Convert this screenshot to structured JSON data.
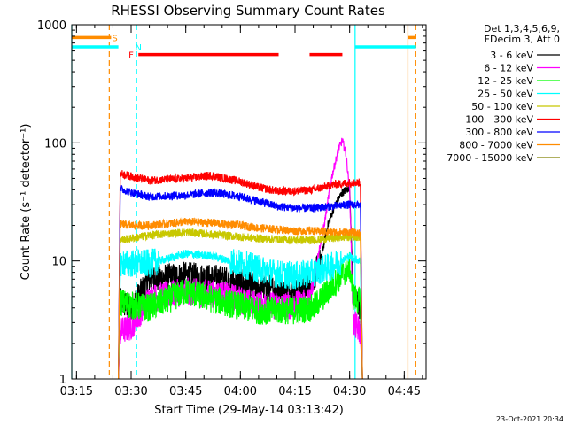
{
  "chart_data": {
    "type": "line",
    "title": "RHESSI Observing Summary Count Rates",
    "xlabel": "Start Time (29-May-14 03:13:42)",
    "ylabel": "Count Rate (s⁻¹ detector⁻¹)",
    "x_range": [
      "03:13:42",
      "04:51:00"
    ],
    "ylim": [
      1,
      1000
    ],
    "yscale": "log",
    "x_ticks": [
      "03:15",
      "03:30",
      "03:45",
      "04:00",
      "04:15",
      "04:30",
      "04:45"
    ],
    "y_ticks": [
      "1",
      "10",
      "100",
      "1000"
    ],
    "legend_header": [
      "Det 1,3,4,5,6,9,",
      "FDecim 3, Att 0"
    ],
    "legend_position": "right",
    "data_window": [
      "03:26:30",
      "04:33:30"
    ],
    "series": [
      {
        "name": "3 - 6 keV",
        "color": "#000000",
        "points": [
          [
            "03:27",
            "4.5"
          ],
          [
            "03:30",
            "4.0"
          ],
          [
            "03:35",
            "7.0"
          ],
          [
            "03:45",
            "7.5"
          ],
          [
            "03:55",
            "7.0"
          ],
          [
            "04:05",
            "6.0"
          ],
          [
            "04:15",
            "5.5"
          ],
          [
            "04:19",
            "6.0"
          ],
          [
            "04:22",
            "10"
          ],
          [
            "04:24",
            "20"
          ],
          [
            "04:26",
            "30"
          ],
          [
            "04:28",
            "38"
          ],
          [
            "04:30",
            "42"
          ],
          [
            "04:31",
            "5.0"
          ],
          [
            "04:33",
            "4.0"
          ]
        ]
      },
      {
        "name": "6 - 12 keV",
        "color": "#ff00ff",
        "points": [
          [
            "03:27",
            "2.5"
          ],
          [
            "03:30",
            "2.8"
          ],
          [
            "03:35",
            "4.8"
          ],
          [
            "03:45",
            "5.5"
          ],
          [
            "03:55",
            "5.2"
          ],
          [
            "04:05",
            "4.2"
          ],
          [
            "04:15",
            "4.2"
          ],
          [
            "04:19",
            "4.5"
          ],
          [
            "04:21",
            "10"
          ],
          [
            "04:23",
            "20"
          ],
          [
            "04:25",
            "50"
          ],
          [
            "04:27",
            "90"
          ],
          [
            "04:28",
            "105"
          ],
          [
            "04:29",
            "80"
          ],
          [
            "04:30",
            "40"
          ],
          [
            "04:31",
            "3.0"
          ],
          [
            "04:33",
            "2.5"
          ]
        ]
      },
      {
        "name": "12 - 25 keV",
        "color": "#00ff00",
        "points": [
          [
            "03:27",
            "4.5"
          ],
          [
            "03:30",
            "4.2"
          ],
          [
            "03:35",
            "4.0"
          ],
          [
            "03:45",
            "5.5"
          ],
          [
            "03:55",
            "4.5"
          ],
          [
            "04:05",
            "3.8"
          ],
          [
            "04:15",
            "3.8"
          ],
          [
            "04:20",
            "4.0"
          ],
          [
            "04:25",
            "6"
          ],
          [
            "04:30",
            "9"
          ],
          [
            "04:31",
            "5.0"
          ],
          [
            "04:33",
            "4.5"
          ]
        ]
      },
      {
        "name": "25 - 50 keV",
        "color": "#00ffff",
        "points": [
          [
            "03:27",
            "9.5"
          ],
          [
            "03:30",
            "9.5"
          ],
          [
            "03:35",
            "9.5"
          ],
          [
            "03:45",
            "11.5"
          ],
          [
            "03:52",
            "11.0"
          ],
          [
            "04:00",
            "9.5"
          ],
          [
            "04:10",
            "7.8"
          ],
          [
            "04:15",
            "7.5"
          ],
          [
            "04:20",
            "8"
          ],
          [
            "04:25",
            "9"
          ],
          [
            "04:30",
            "11"
          ],
          [
            "04:31",
            "10.5"
          ],
          [
            "04:33",
            "10"
          ]
        ]
      },
      {
        "name": "50 - 100 keV",
        "color": "#c8c800",
        "points": [
          [
            "03:27",
            "15"
          ],
          [
            "03:30",
            "15.5"
          ],
          [
            "03:35",
            "16.5"
          ],
          [
            "03:45",
            "17.5"
          ],
          [
            "03:55",
            "16.5"
          ],
          [
            "04:05",
            "15.5"
          ],
          [
            "04:15",
            "15"
          ],
          [
            "04:20",
            "15"
          ],
          [
            "04:25",
            "15.5"
          ],
          [
            "04:30",
            "16"
          ],
          [
            "04:33",
            "16"
          ]
        ]
      },
      {
        "name": "100 - 300 keV",
        "color": "#ff0000",
        "points": [
          [
            "03:27",
            "55"
          ],
          [
            "03:30",
            "52"
          ],
          [
            "03:35",
            "48"
          ],
          [
            "03:45",
            "50"
          ],
          [
            "03:52",
            "53"
          ],
          [
            "04:00",
            "47"
          ],
          [
            "04:05",
            "42"
          ],
          [
            "04:10",
            "39"
          ],
          [
            "04:15",
            "39"
          ],
          [
            "04:20",
            "40"
          ],
          [
            "04:25",
            "44"
          ],
          [
            "04:30",
            "46"
          ],
          [
            "04:33",
            "46"
          ]
        ]
      },
      {
        "name": "300 - 800 keV",
        "color": "#0000ff",
        "points": [
          [
            "03:27",
            "41"
          ],
          [
            "03:30",
            "38"
          ],
          [
            "03:35",
            "35"
          ],
          [
            "03:45",
            "36"
          ],
          [
            "03:52",
            "38"
          ],
          [
            "04:00",
            "35"
          ],
          [
            "04:05",
            "32"
          ],
          [
            "04:10",
            "29"
          ],
          [
            "04:15",
            "28"
          ],
          [
            "04:20",
            "28"
          ],
          [
            "04:25",
            "29"
          ],
          [
            "04:30",
            "30"
          ],
          [
            "04:33",
            "30"
          ]
        ]
      },
      {
        "name": "800 - 7000 keV",
        "color": "#ff8c00",
        "points": [
          [
            "03:27",
            "20.5"
          ],
          [
            "03:30",
            "20"
          ],
          [
            "03:35",
            "20"
          ],
          [
            "03:45",
            "21.5"
          ],
          [
            "03:52",
            "21"
          ],
          [
            "04:00",
            "20"
          ],
          [
            "04:05",
            "19"
          ],
          [
            "04:10",
            "18.5"
          ],
          [
            "04:15",
            "18"
          ],
          [
            "04:20",
            "18"
          ],
          [
            "04:25",
            "17.5"
          ],
          [
            "04:30",
            "17.5"
          ],
          [
            "04:33",
            "17"
          ]
        ]
      },
      {
        "name": "7000 - 15000 keV",
        "color": "#808000",
        "points": []
      }
    ],
    "flag_bars": [
      {
        "label": "S",
        "color": "#ff8c00",
        "y": "780",
        "segments": [
          [
            "03:13:42",
            "03:24:30"
          ],
          [
            "04:46:00",
            "04:48:00"
          ]
        ],
        "marker_at": "03:25:30"
      },
      {
        "label": "N",
        "color": "#00ffff",
        "y": "650",
        "segments": [
          [
            "03:13:42",
            "03:26:30"
          ],
          [
            "04:31:30",
            "04:48:00"
          ]
        ],
        "marker_at": "03:32:00"
      },
      {
        "label": "F",
        "color": "#ff0000",
        "y": "560",
        "segments": [
          [
            "03:32:00",
            "04:10:30"
          ],
          [
            "04:19:00",
            "04:28:00"
          ]
        ],
        "marker_at": "03:30:00"
      }
    ],
    "vlines": [
      {
        "time": "03:24:00",
        "color": "#ff8c00",
        "style": "dashed"
      },
      {
        "time": "03:31:30",
        "color": "#00ffff",
        "style": "dashed"
      },
      {
        "time": "04:31:30",
        "color": "#00ffff",
        "style": "solid"
      },
      {
        "time": "04:46:00",
        "color": "#ff8c00",
        "style": "solid"
      },
      {
        "time": "04:48:00",
        "color": "#ff8c00",
        "style": "dashed"
      },
      {
        "time": "03:13:42",
        "color": "#00ffff",
        "style": "solid"
      }
    ],
    "footer_timestamp": "23-Oct-2021 20:34"
  }
}
